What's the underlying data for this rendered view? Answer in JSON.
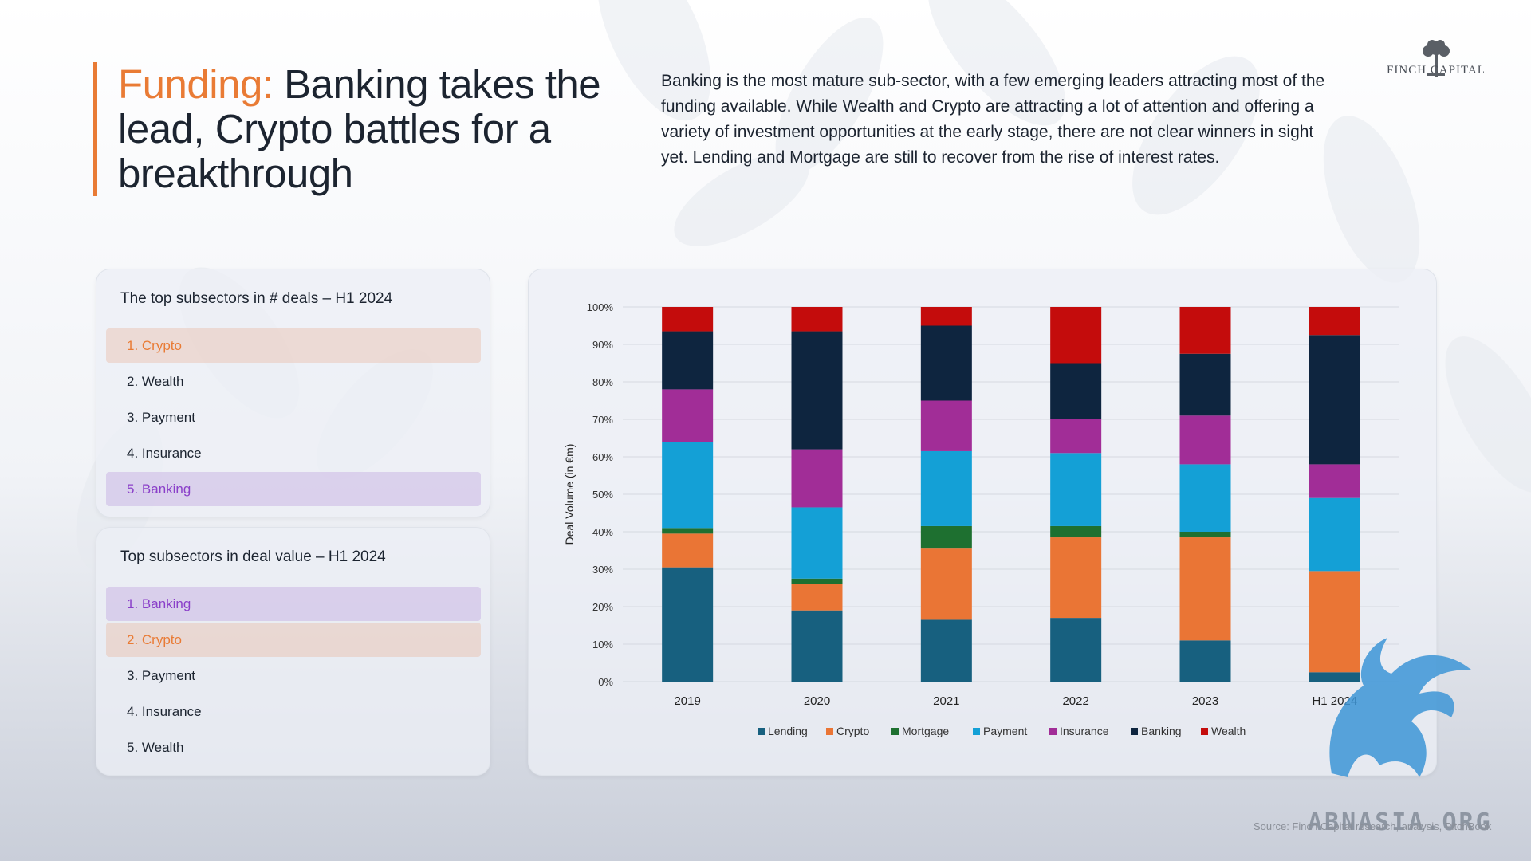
{
  "header": {
    "title_accent": "Funding:",
    "title_rest": " Banking takes the lead, Crypto battles for a breakthrough",
    "intro": "Banking is the most mature sub-sector, with a few emerging leaders attracting most of the funding available. While Wealth and Crypto are attracting a lot of attention and offering a variety of investment opportunities at the early stage, there are not clear winners in sight yet. Lending and Mortgage are still to recover from the rise of interest rates."
  },
  "logo": {
    "text": "FINCH CAPITAL",
    "icon": "tree-icon"
  },
  "deals_panel": {
    "title": "The top subsectors in # deals – H1 2024",
    "items": [
      "1. Crypto",
      "2. Wealth",
      "3. Payment",
      "4. Insurance",
      "5. Banking"
    ]
  },
  "value_panel": {
    "title": "Top subsectors in deal value – H1 2024",
    "items": [
      "1. Banking",
      "2. Crypto",
      "3. Payment",
      "4. Insurance",
      "5. Wealth"
    ]
  },
  "colors": {
    "accent": "#e97b35",
    "banking_highlight": "#8a3fc9",
    "Lending": "#17607f",
    "Crypto": "#ea7535",
    "Mortgage": "#1e7030",
    "Payment": "#14a0d6",
    "Insurance": "#a12d97",
    "Banking": "#0e253f",
    "Wealth": "#c40c0c"
  },
  "chart_data": {
    "type": "bar",
    "stacked": true,
    "categories": [
      "2019",
      "2020",
      "2021",
      "2022",
      "2023",
      "H1 2024"
    ],
    "series": [
      {
        "name": "Lending",
        "values": [
          30.5,
          19,
          16.5,
          17,
          11,
          2.5
        ]
      },
      {
        "name": "Crypto",
        "values": [
          9,
          7,
          19,
          21.5,
          27.5,
          27
        ]
      },
      {
        "name": "Mortgage",
        "values": [
          1.5,
          1.5,
          6,
          3,
          1.5,
          0
        ]
      },
      {
        "name": "Payment",
        "values": [
          23,
          19,
          20,
          19.5,
          18,
          19.5
        ]
      },
      {
        "name": "Insurance",
        "values": [
          14,
          15.5,
          13.5,
          9,
          13,
          9
        ]
      },
      {
        "name": "Banking",
        "values": [
          15.5,
          31.5,
          20,
          15,
          16.5,
          34.5
        ]
      },
      {
        "name": "Wealth",
        "values": [
          6.5,
          6.5,
          5,
          15,
          12.5,
          7.5
        ]
      }
    ],
    "ylabel": "Deal Volume (in €m)",
    "ylim": [
      0,
      100
    ],
    "yticks": [
      "0%",
      "10%",
      "20%",
      "30%",
      "40%",
      "50%",
      "60%",
      "70%",
      "80%",
      "90%",
      "100%"
    ],
    "grid": true,
    "legend": "bottom"
  },
  "source": "Source: Finch Capital research, analysis, PitchBook",
  "watermark": "ABNASIA.ORG"
}
